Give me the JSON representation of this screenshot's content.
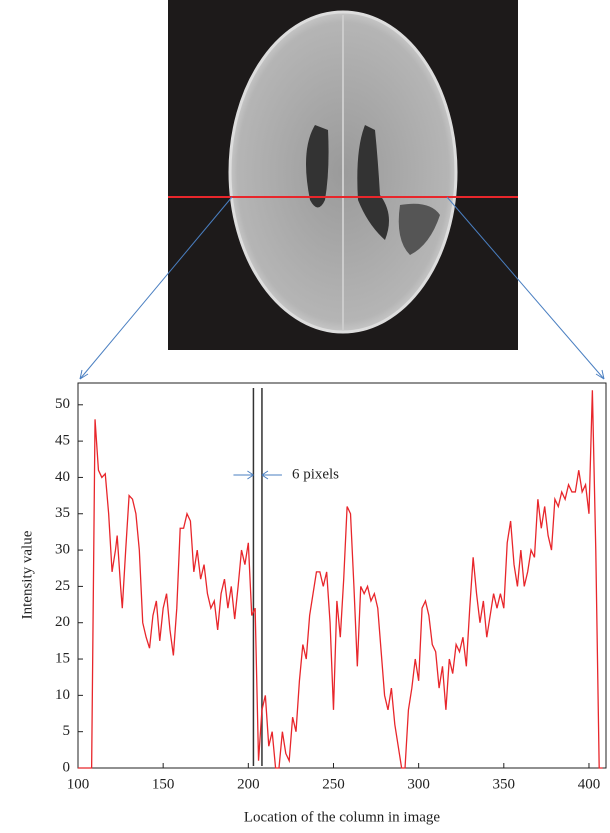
{
  "chart_data": {
    "type": "line",
    "x_label": "Location of the column in image",
    "y_label": "Intensity value",
    "annotation": "6 pixels",
    "markers": [
      203,
      208
    ],
    "xlim": [
      100,
      410
    ],
    "ylim": [
      0,
      53
    ],
    "xticks": [
      100,
      150,
      200,
      250,
      300,
      350,
      400
    ],
    "yticks": [
      0,
      5,
      10,
      15,
      20,
      25,
      30,
      35,
      40,
      45,
      50
    ],
    "series": [
      {
        "color": "#e8262b",
        "x": [
          100,
          108,
          110,
          112,
          114,
          116,
          118,
          120,
          122,
          123,
          125,
          126,
          128,
          130,
          132,
          134,
          136,
          138,
          140,
          142,
          144,
          146,
          148,
          150,
          152,
          154,
          156,
          158,
          160,
          162,
          164,
          166,
          168,
          170,
          172,
          174,
          176,
          178,
          180,
          182,
          184,
          186,
          188,
          190,
          192,
          194,
          196,
          198,
          200,
          202,
          204,
          206,
          208,
          210,
          212,
          214,
          216,
          218,
          220,
          222,
          224,
          226,
          228,
          230,
          232,
          234,
          236,
          238,
          240,
          242,
          244,
          246,
          248,
          250,
          252,
          254,
          256,
          258,
          260,
          262,
          264,
          266,
          268,
          270,
          272,
          274,
          276,
          278,
          280,
          282,
          284,
          286,
          288,
          290,
          292,
          294,
          296,
          298,
          300,
          302,
          304,
          306,
          308,
          310,
          312,
          314,
          316,
          318,
          320,
          322,
          324,
          326,
          328,
          330,
          332,
          334,
          336,
          338,
          340,
          342,
          344,
          346,
          348,
          350,
          352,
          354,
          356,
          358,
          360,
          362,
          364,
          366,
          368,
          370,
          372,
          374,
          376,
          378,
          380,
          382,
          384,
          386,
          388,
          390,
          392,
          394,
          396,
          398,
          400,
          402,
          404,
          406,
          408
        ],
        "values": [
          0,
          0,
          48,
          41,
          40,
          40.5,
          35,
          27,
          30,
          32,
          25,
          22,
          30,
          37.5,
          37,
          35,
          30,
          20,
          18,
          16.5,
          21,
          23,
          17.5,
          22,
          24,
          19,
          15.5,
          22,
          33,
          33,
          35,
          34,
          27,
          30,
          26,
          28,
          24,
          22,
          23,
          19,
          24,
          26,
          22,
          25,
          20.5,
          25,
          30,
          28,
          31,
          21,
          22,
          1,
          8,
          10,
          3,
          5,
          0,
          0,
          5,
          2,
          1,
          7,
          5,
          12,
          17,
          15,
          21,
          24,
          27,
          27,
          25,
          27,
          20,
          8,
          23,
          18,
          26,
          36,
          35,
          25,
          14,
          25,
          24,
          25,
          23,
          24,
          22,
          16,
          10,
          8,
          11,
          6,
          3,
          0,
          0,
          8,
          11,
          15,
          12,
          22,
          23,
          21,
          17,
          16,
          11,
          14,
          8,
          15,
          13,
          17,
          16,
          18,
          14,
          22,
          29,
          24,
          20,
          23,
          18,
          21,
          24,
          22,
          24,
          22,
          31,
          34,
          28,
          25,
          30,
          25,
          27,
          30,
          29,
          37,
          33,
          36,
          32,
          30,
          37,
          36,
          38,
          37,
          39,
          38,
          38,
          41,
          38,
          39,
          35,
          52,
          30,
          0,
          0
        ]
      }
    ]
  }
}
